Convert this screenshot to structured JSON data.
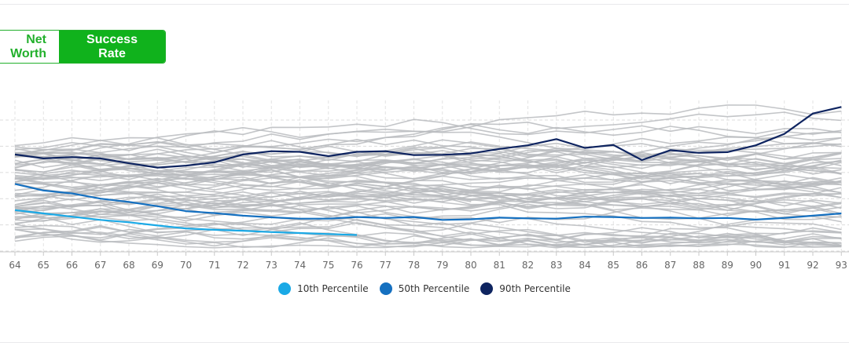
{
  "toggle": {
    "net_worth_label": "Net Worth",
    "success_rate_label": "Success Rate",
    "active": "Success Rate"
  },
  "chart_data": {
    "type": "line",
    "title": "",
    "xlabel": "",
    "ylabel": "",
    "x": [
      64,
      65,
      66,
      67,
      68,
      69,
      70,
      71,
      72,
      73,
      74,
      75,
      76,
      77,
      78,
      79,
      80,
      81,
      82,
      83,
      84,
      85,
      86,
      87,
      88,
      89,
      90,
      91,
      92,
      93
    ],
    "grid": true,
    "legend_position": "bottom-center",
    "background_lines_color": "#b9bbbe",
    "series": [
      {
        "name": "10th Percentile",
        "color": "#1aa9e6",
        "values": [
          12.5,
          11.5,
          10.5,
          9.5,
          8.8,
          7.8,
          6.9,
          6.5,
          6.2,
          5.8,
          5.5,
          5.2,
          4.9,
          null,
          null,
          null,
          null,
          null,
          null,
          null,
          null,
          null,
          null,
          null,
          null,
          null,
          null,
          null,
          null,
          null
        ]
      },
      {
        "name": "50th Percentile",
        "color": "#1570c0",
        "values": [
          20.5,
          18.5,
          17.6,
          16.0,
          15.0,
          13.7,
          12.2,
          11.6,
          10.8,
          10.3,
          9.9,
          9.9,
          10.4,
          10.1,
          10.4,
          9.5,
          9.7,
          10.2,
          10.0,
          9.9,
          10.5,
          10.4,
          10.1,
          10.2,
          10.0,
          10.1,
          9.6,
          10.1,
          10.8,
          11.5
        ]
      },
      {
        "name": "90th Percentile",
        "color": "#0e2460",
        "values": [
          29.5,
          28.3,
          28.7,
          28.3,
          26.8,
          25.5,
          26.1,
          27.1,
          29.5,
          30.5,
          30.3,
          29.0,
          30.3,
          30.5,
          29.3,
          29.4,
          29.8,
          31.2,
          32.3,
          34.2,
          31.5,
          32.4,
          27.8,
          30.8,
          30.0,
          30.2,
          32.3,
          35.8,
          42.0,
          44.0
        ]
      }
    ]
  }
}
